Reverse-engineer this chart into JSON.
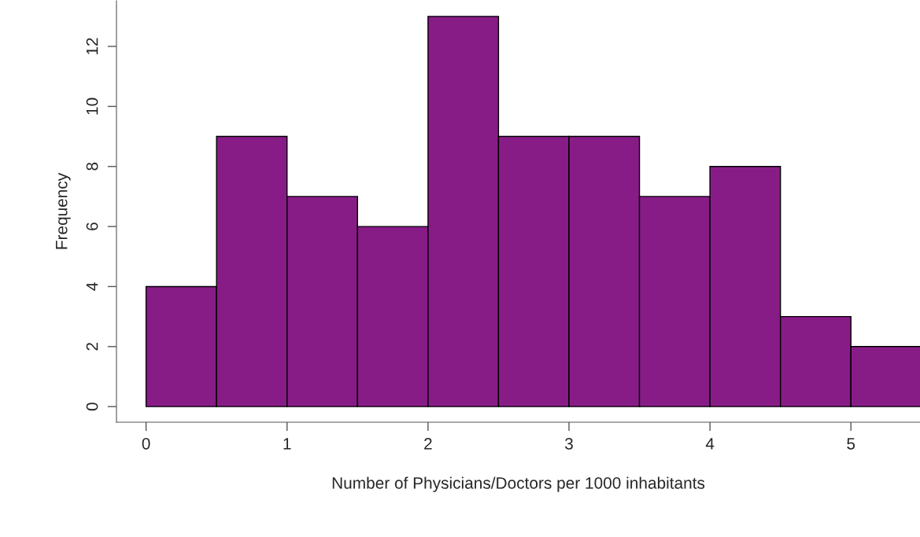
{
  "chart_data": {
    "type": "histogram",
    "xlabel": "Number of Physicians/Doctors per 1000 inhabitants",
    "ylabel": "Frequency",
    "bins": [
      0,
      0.5,
      1,
      1.5,
      2,
      2.5,
      3,
      3.5,
      4,
      4.5,
      5,
      5.5
    ],
    "values": [
      4,
      9,
      7,
      6,
      13,
      9,
      9,
      7,
      8,
      3,
      2
    ],
    "color": "#881c87",
    "xlim": [
      -0.21,
      5.49
    ],
    "ylim": [
      -0.52,
      13.52
    ],
    "xticks": [
      0,
      1,
      2,
      3,
      4,
      5
    ],
    "yticks": [
      0,
      2,
      4,
      6,
      8,
      10,
      12
    ],
    "grid": false
  }
}
